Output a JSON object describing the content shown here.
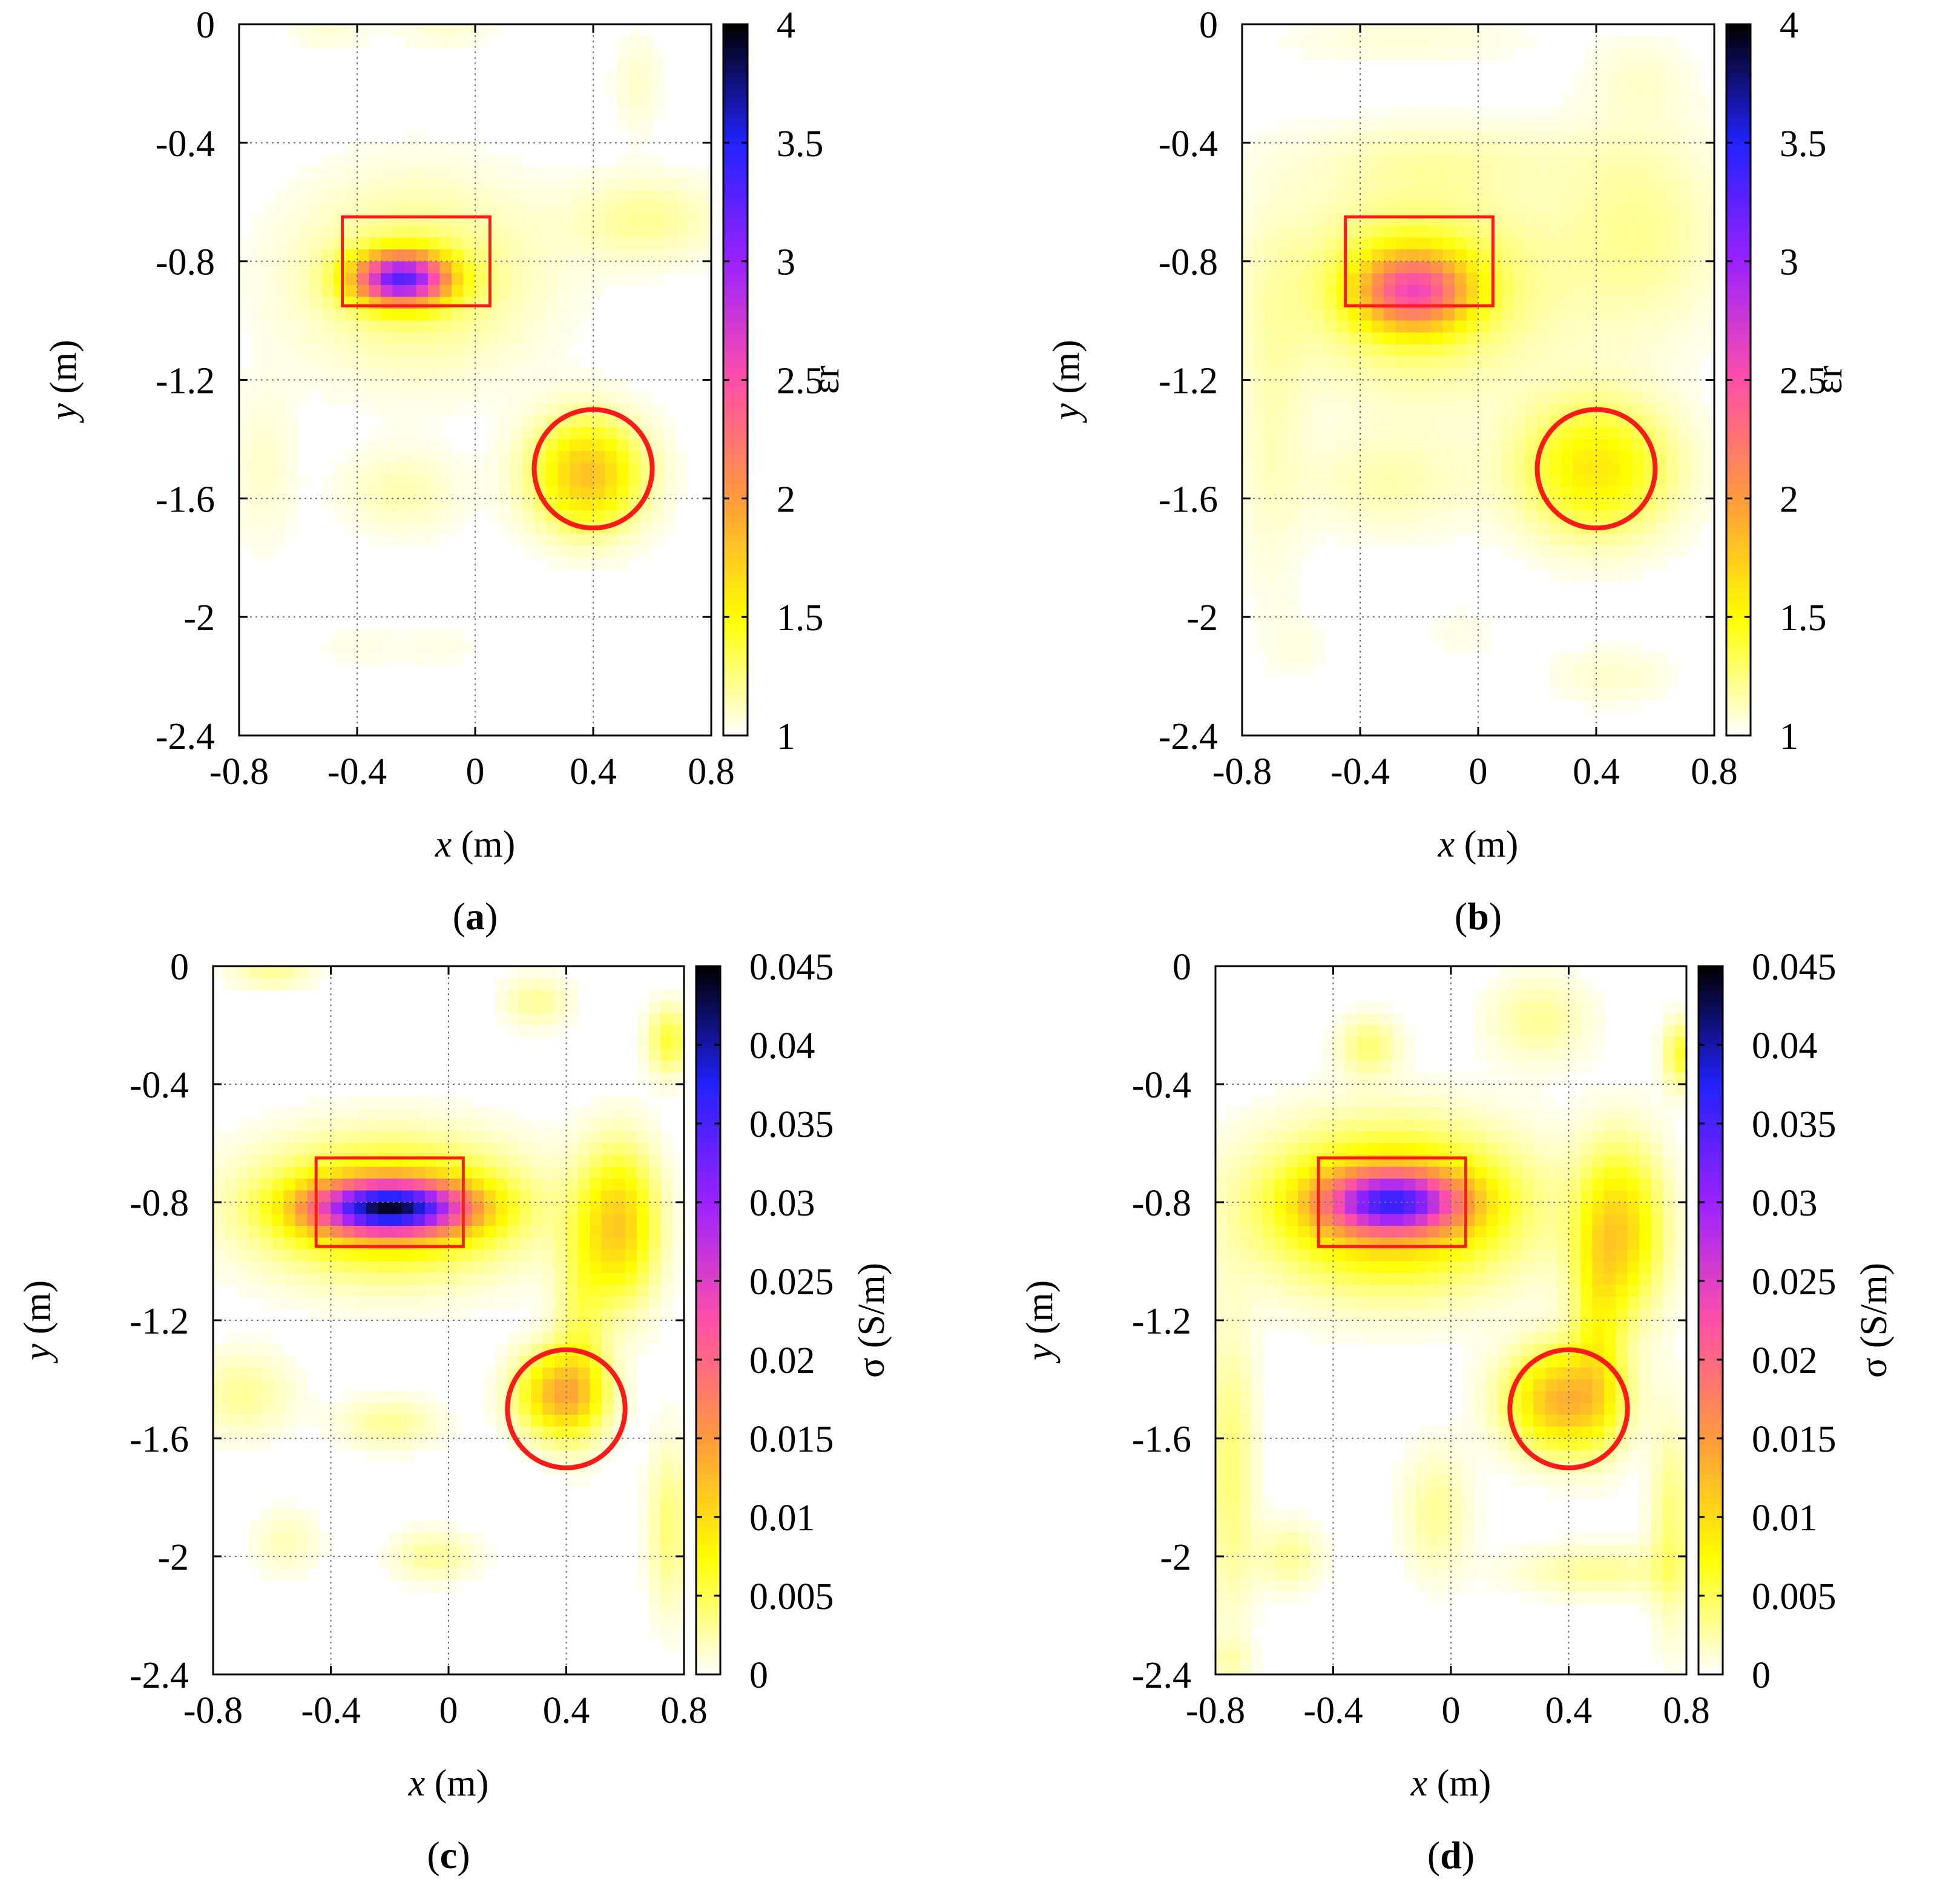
{
  "figure": {
    "colormap": [
      "#ffffff",
      "#ffff00",
      "#ff9a3c",
      "#ff4fa8",
      "#9b22ff",
      "#2222ff",
      "#000000"
    ],
    "target_color": "#ff1a1a"
  },
  "chart_data": [
    {
      "id": "a",
      "type": "heatmap",
      "caption": "(a)",
      "xlabel_var": "x",
      "xlabel_unit": " (m)",
      "ylabel_var": "y",
      "ylabel_unit": " (m)",
      "colorbar_label": "εr",
      "xlim": [
        -0.8,
        0.8
      ],
      "ylim": [
        -2.4,
        0
      ],
      "xticks": [
        "-0.8",
        "-0.4",
        "0",
        "0.4",
        "0.8"
      ],
      "yticks": [
        "0",
        "-0.4",
        "-0.8",
        "-1.2",
        "-1.6",
        "-2",
        "-2.4"
      ],
      "clim": [
        1,
        4
      ],
      "cticks": [
        "1",
        "1.5",
        "2",
        "2.5",
        "3",
        "3.5",
        "4"
      ],
      "targets": {
        "rect": {
          "x": [
            -0.45,
            0.05
          ],
          "y": [
            -0.95,
            -0.65
          ]
        },
        "circle": {
          "cx": 0.4,
          "cy": -1.5,
          "r": 0.2
        }
      },
      "blobs": [
        {
          "x": -0.25,
          "y": -0.86,
          "sx": 0.11,
          "sy": 0.06,
          "v": 3.0
        },
        {
          "x": -0.2,
          "y": -0.85,
          "sx": 0.28,
          "sy": 0.22,
          "v": 1.3
        },
        {
          "x": 0.38,
          "y": -1.52,
          "sx": 0.13,
          "sy": 0.13,
          "v": 1.8
        },
        {
          "x": -0.25,
          "y": -1.58,
          "sx": 0.14,
          "sy": 0.1,
          "v": 1.15
        },
        {
          "x": 0.58,
          "y": -0.66,
          "sx": 0.18,
          "sy": 0.1,
          "v": 1.2
        },
        {
          "x": -0.72,
          "y": -1.5,
          "sx": 0.08,
          "sy": 0.2,
          "v": 1.1
        },
        {
          "x": 0.55,
          "y": -0.2,
          "sx": 0.06,
          "sy": 0.12,
          "v": 1.1
        },
        {
          "x": -0.4,
          "y": -2.1,
          "sx": 0.12,
          "sy": 0.06,
          "v": 1.05
        },
        {
          "x": -0.1,
          "y": -2.1,
          "sx": 0.1,
          "sy": 0.06,
          "v": 1.05
        },
        {
          "x": -0.5,
          "y": -0.02,
          "sx": 0.1,
          "sy": 0.05,
          "v": 1.08
        },
        {
          "x": -0.1,
          "y": -0.02,
          "sx": 0.12,
          "sy": 0.05,
          "v": 1.08
        }
      ]
    },
    {
      "id": "b",
      "type": "heatmap",
      "caption": "(b)",
      "xlabel_var": "x",
      "xlabel_unit": " (m)",
      "ylabel_var": "y",
      "ylabel_unit": " (m)",
      "colorbar_label": "εr",
      "xlim": [
        -0.8,
        0.8
      ],
      "ylim": [
        -2.4,
        0
      ],
      "xticks": [
        "-0.8",
        "-0.4",
        "0",
        "0.4",
        "0.8"
      ],
      "yticks": [
        "0",
        "-0.4",
        "-0.8",
        "-1.2",
        "-1.6",
        "-2",
        "-2.4"
      ],
      "clim": [
        1,
        4
      ],
      "cticks": [
        "1",
        "1.5",
        "2",
        "2.5",
        "3",
        "3.5",
        "4"
      ],
      "targets": {
        "rect": {
          "x": [
            -0.45,
            0.05
          ],
          "y": [
            -0.95,
            -0.65
          ]
        },
        "circle": {
          "cx": 0.4,
          "cy": -1.5,
          "r": 0.2
        }
      },
      "blobs": [
        {
          "x": -0.22,
          "y": -0.9,
          "sx": 0.13,
          "sy": 0.09,
          "v": 2.2
        },
        {
          "x": -0.2,
          "y": -0.88,
          "sx": 0.3,
          "sy": 0.24,
          "v": 1.4
        },
        {
          "x": 0.4,
          "y": -1.5,
          "sx": 0.18,
          "sy": 0.16,
          "v": 1.6
        },
        {
          "x": 0.55,
          "y": -0.7,
          "sx": 0.2,
          "sy": 0.25,
          "v": 1.2
        },
        {
          "x": -0.3,
          "y": -1.55,
          "sx": 0.2,
          "sy": 0.12,
          "v": 1.15
        },
        {
          "x": -0.7,
          "y": -1.3,
          "sx": 0.08,
          "sy": 0.45,
          "v": 1.12
        },
        {
          "x": -0.1,
          "y": -0.45,
          "sx": 0.35,
          "sy": 0.08,
          "v": 1.1
        },
        {
          "x": 0.45,
          "y": -2.2,
          "sx": 0.15,
          "sy": 0.07,
          "v": 1.1
        },
        {
          "x": -0.6,
          "y": -2.1,
          "sx": 0.08,
          "sy": 0.08,
          "v": 1.05
        },
        {
          "x": 0.55,
          "y": -0.18,
          "sx": 0.12,
          "sy": 0.1,
          "v": 1.08
        },
        {
          "x": -0.25,
          "y": -0.05,
          "sx": 0.3,
          "sy": 0.06,
          "v": 1.08
        },
        {
          "x": -0.05,
          "y": -2.05,
          "sx": 0.1,
          "sy": 0.07,
          "v": 1.05
        }
      ]
    },
    {
      "id": "c",
      "type": "heatmap",
      "caption": "(c)",
      "xlabel_var": "x",
      "xlabel_unit": " (m)",
      "ylabel_var": "y",
      "ylabel_unit": " (m)",
      "colorbar_label": "σ (S/m)",
      "xlim": [
        -0.8,
        0.8
      ],
      "ylim": [
        -2.4,
        0
      ],
      "xticks": [
        "-0.8",
        "-0.4",
        "0",
        "0.4",
        "0.8"
      ],
      "yticks": [
        "0",
        "-0.4",
        "-0.8",
        "-1.2",
        "-1.6",
        "-2",
        "-2.4"
      ],
      "clim": [
        0,
        0.045
      ],
      "cticks": [
        "0",
        "0.005",
        "0.01",
        "0.015",
        "0.02",
        "0.025",
        "0.03",
        "0.035",
        "0.04",
        "0.045"
      ],
      "targets": {
        "rect": {
          "x": [
            -0.45,
            0.05
          ],
          "y": [
            -0.95,
            -0.65
          ]
        },
        "circle": {
          "cx": 0.4,
          "cy": -1.5,
          "r": 0.2
        }
      },
      "blobs": [
        {
          "x": -0.2,
          "y": -0.82,
          "sx": 0.18,
          "sy": 0.06,
          "v": 0.032
        },
        {
          "x": -0.2,
          "y": -0.82,
          "sx": 0.3,
          "sy": 0.15,
          "v": 0.012
        },
        {
          "x": 0.38,
          "y": -1.45,
          "sx": 0.1,
          "sy": 0.1,
          "v": 0.013
        },
        {
          "x": 0.58,
          "y": -0.88,
          "sx": 0.09,
          "sy": 0.18,
          "v": 0.011
        },
        {
          "x": 0.45,
          "y": -1.2,
          "sx": 0.06,
          "sy": 0.25,
          "v": 0.004
        },
        {
          "x": -0.2,
          "y": -1.55,
          "sx": 0.12,
          "sy": 0.06,
          "v": 0.003
        },
        {
          "x": -0.7,
          "y": -1.45,
          "sx": 0.12,
          "sy": 0.1,
          "v": 0.003
        },
        {
          "x": -0.05,
          "y": -2.0,
          "sx": 0.1,
          "sy": 0.06,
          "v": 0.003
        },
        {
          "x": -0.55,
          "y": -1.95,
          "sx": 0.08,
          "sy": 0.08,
          "v": 0.002
        },
        {
          "x": 0.3,
          "y": -0.12,
          "sx": 0.08,
          "sy": 0.06,
          "v": 0.003
        },
        {
          "x": 0.75,
          "y": -0.25,
          "sx": 0.05,
          "sy": 0.08,
          "v": 0.006
        },
        {
          "x": 0.75,
          "y": -1.9,
          "sx": 0.05,
          "sy": 0.2,
          "v": 0.004
        },
        {
          "x": -0.6,
          "y": -0.02,
          "sx": 0.1,
          "sy": 0.04,
          "v": 0.003
        }
      ]
    },
    {
      "id": "d",
      "type": "heatmap",
      "caption": "(d)",
      "xlabel_var": "x",
      "xlabel_unit": " (m)",
      "ylabel_var": "y",
      "ylabel_unit": " (m)",
      "colorbar_label": "σ (S/m)",
      "xlim": [
        -0.8,
        0.8
      ],
      "ylim": [
        -2.4,
        0
      ],
      "xticks": [
        "-0.8",
        "-0.4",
        "0",
        "0.4",
        "0.8"
      ],
      "yticks": [
        "0",
        "-0.4",
        "-0.8",
        "-1.2",
        "-1.6",
        "-2",
        "-2.4"
      ],
      "clim": [
        0,
        0.045
      ],
      "cticks": [
        "0",
        "0.005",
        "0.01",
        "0.015",
        "0.02",
        "0.025",
        "0.03",
        "0.035",
        "0.04",
        "0.045"
      ],
      "targets": {
        "rect": {
          "x": [
            -0.45,
            0.05
          ],
          "y": [
            -0.95,
            -0.65
          ]
        },
        "circle": {
          "cx": 0.4,
          "cy": -1.5,
          "r": 0.2
        }
      },
      "blobs": [
        {
          "x": -0.2,
          "y": -0.8,
          "sx": 0.16,
          "sy": 0.07,
          "v": 0.024
        },
        {
          "x": -0.2,
          "y": -0.82,
          "sx": 0.3,
          "sy": 0.18,
          "v": 0.013
        },
        {
          "x": 0.38,
          "y": -1.47,
          "sx": 0.13,
          "sy": 0.12,
          "v": 0.013
        },
        {
          "x": 0.58,
          "y": -0.9,
          "sx": 0.1,
          "sy": 0.2,
          "v": 0.01
        },
        {
          "x": 0.5,
          "y": -1.2,
          "sx": 0.06,
          "sy": 0.25,
          "v": 0.005
        },
        {
          "x": -0.28,
          "y": -0.27,
          "sx": 0.07,
          "sy": 0.07,
          "v": 0.004
        },
        {
          "x": 0.3,
          "y": -0.18,
          "sx": 0.12,
          "sy": 0.1,
          "v": 0.003
        },
        {
          "x": -0.75,
          "y": -1.7,
          "sx": 0.06,
          "sy": 0.35,
          "v": 0.004
        },
        {
          "x": -0.05,
          "y": -1.85,
          "sx": 0.08,
          "sy": 0.15,
          "v": 0.003
        },
        {
          "x": 0.5,
          "y": -2.05,
          "sx": 0.2,
          "sy": 0.06,
          "v": 0.003
        },
        {
          "x": 0.75,
          "y": -1.9,
          "sx": 0.05,
          "sy": 0.25,
          "v": 0.004
        },
        {
          "x": -0.55,
          "y": -2.0,
          "sx": 0.08,
          "sy": 0.08,
          "v": 0.003
        },
        {
          "x": 0.78,
          "y": -0.3,
          "sx": 0.04,
          "sy": 0.08,
          "v": 0.006
        },
        {
          "x": -0.75,
          "y": -2.35,
          "sx": 0.05,
          "sy": 0.05,
          "v": 0.002
        }
      ]
    }
  ]
}
